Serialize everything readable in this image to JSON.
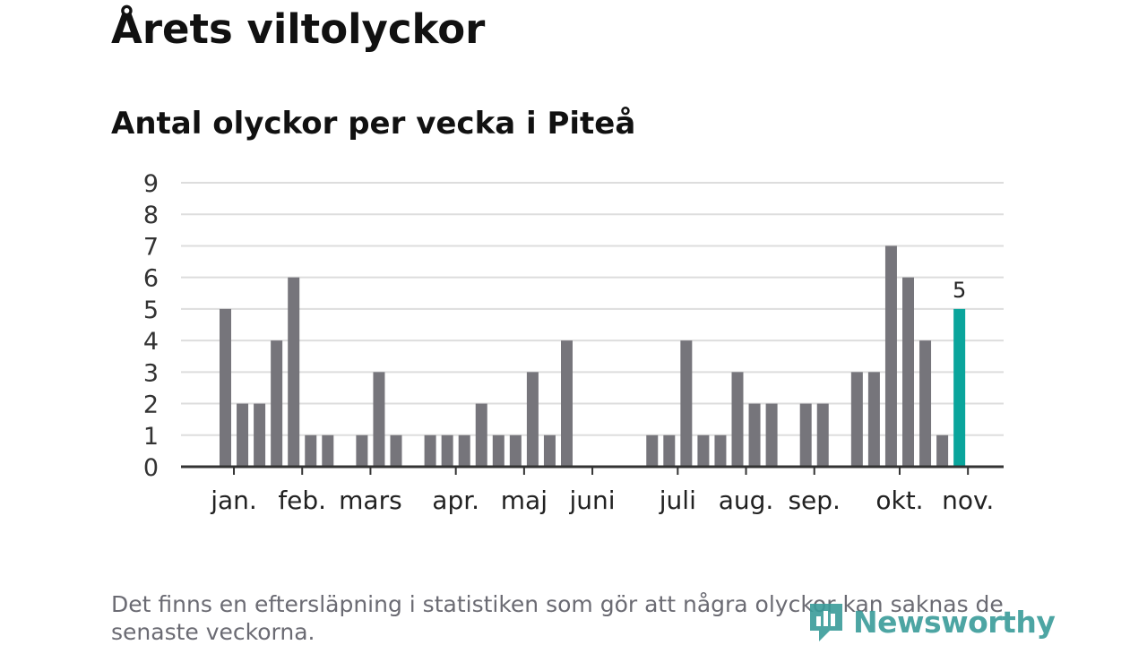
{
  "title": "Årets viltolyckor",
  "subtitle": "Antal olyckor per vecka i Piteå",
  "footnote": "Det finns en eftersläpning i statistiken som gör att några olyckor kan saknas de senaste veckorna.",
  "logo": {
    "text": "Newsworthy",
    "icon": "newsworthy-logo-icon"
  },
  "colors": {
    "bar": "#76757b",
    "highlight": "#0aa59c",
    "grid": "#dddddd",
    "axis": "#333333"
  },
  "chart_data": {
    "type": "bar",
    "title": "Antal olyckor per vecka i Piteå",
    "xlabel": "",
    "ylabel": "",
    "ylim": [
      0,
      9
    ],
    "yticks": [
      0,
      1,
      2,
      3,
      4,
      5,
      6,
      7,
      8,
      9
    ],
    "grid": true,
    "weeks": [
      1,
      2,
      3,
      4,
      5,
      6,
      7,
      8,
      9,
      10,
      11,
      12,
      13,
      14,
      15,
      16,
      17,
      18,
      19,
      20,
      21,
      22,
      23,
      24,
      25,
      26,
      27,
      28,
      29,
      30,
      31,
      32,
      33,
      34,
      35,
      36,
      37,
      38,
      39,
      40,
      41,
      42,
      43,
      44
    ],
    "values": [
      5,
      2,
      2,
      4,
      6,
      1,
      1,
      0,
      1,
      3,
      1,
      0,
      1,
      1,
      1,
      2,
      1,
      1,
      3,
      1,
      4,
      0,
      0,
      0,
      0,
      1,
      1,
      4,
      1,
      1,
      3,
      2,
      2,
      0,
      2,
      2,
      0,
      3,
      3,
      7,
      6,
      4,
      1,
      5
    ],
    "highlight_index": 43,
    "highlight_label": "5",
    "months": [
      {
        "label": "jan.",
        "week": 1.5
      },
      {
        "label": "feb.",
        "week": 5.5
      },
      {
        "label": "mars",
        "week": 9.5
      },
      {
        "label": "apr.",
        "week": 14.5
      },
      {
        "label": "maj",
        "week": 18.5
      },
      {
        "label": "juni",
        "week": 22.5
      },
      {
        "label": "juli",
        "week": 27.5
      },
      {
        "label": "aug.",
        "week": 31.5
      },
      {
        "label": "sep.",
        "week": 35.5
      },
      {
        "label": "okt.",
        "week": 40.5
      },
      {
        "label": "nov.",
        "week": 44.5
      }
    ]
  }
}
